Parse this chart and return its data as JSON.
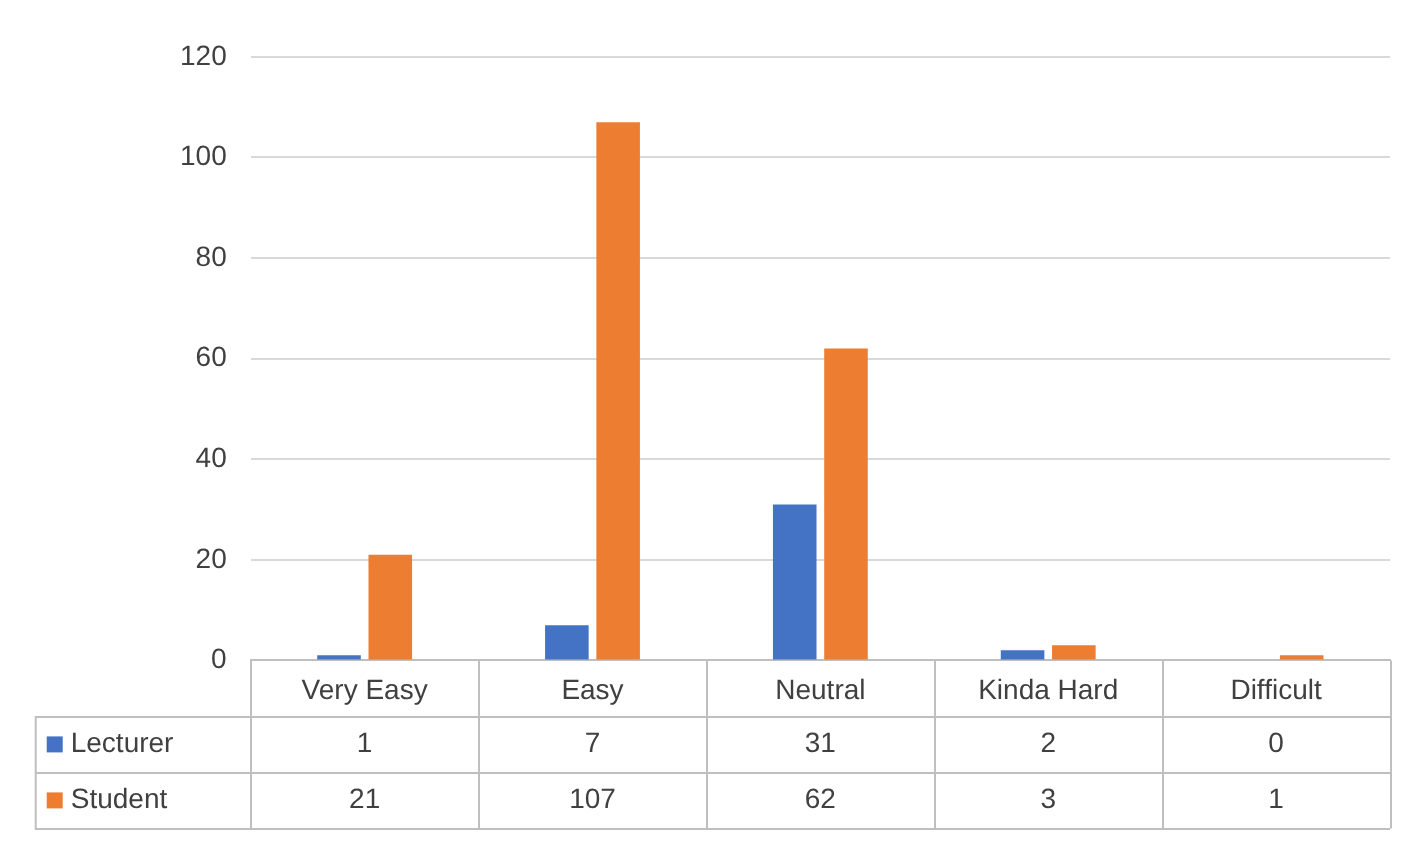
{
  "chart_data": {
    "type": "bar",
    "categories": [
      "Very Easy",
      "Easy",
      "Neutral",
      "Kinda Hard",
      "Difficult"
    ],
    "series": [
      {
        "name": "Lecturer",
        "color": "#4472c4",
        "values": [
          1,
          7,
          31,
          2,
          0
        ]
      },
      {
        "name": "Student",
        "color": "#ed7d31",
        "values": [
          21,
          107,
          62,
          3,
          1
        ]
      }
    ],
    "ylim": [
      0,
      120
    ],
    "yticks": [
      0,
      20,
      40,
      60,
      80,
      100,
      120
    ],
    "grid": "y",
    "legend": "bottom",
    "data_labels": true
  }
}
